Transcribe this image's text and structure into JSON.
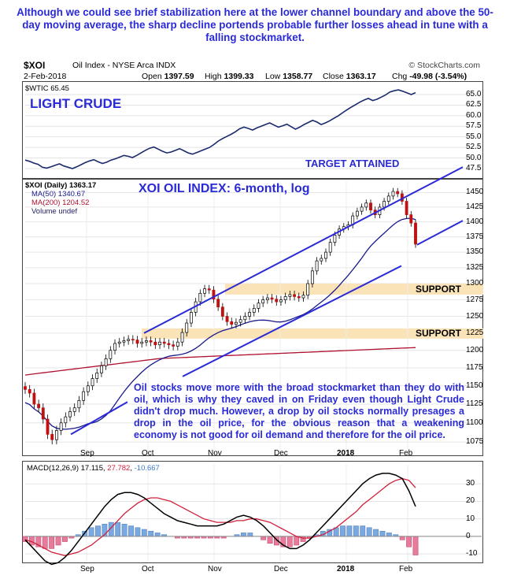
{
  "top_note": "Although we could see brief stabilization here at the lower channel boundary and above the 50-day moving average, the sharp decline portends probable further losses ahead in tune with a falling stockmarket.",
  "header": {
    "symbol": "$XOI",
    "name": "Oil Index - NYSE Arca INDX",
    "source": "© StockCharts.com",
    "date": "2-Feb-2018",
    "open_label": "Open",
    "open": "1397.59",
    "high_label": "High",
    "high": "1399.33",
    "low_label": "Low",
    "low": "1358.77",
    "close_label": "Close",
    "close": "1363.17",
    "chg_label": "Chg",
    "chg": "-49.98 (-3.54%)"
  },
  "colors": {
    "blue_text": "#2a2ad6",
    "price": "#000000",
    "ma50": "#1a1a8c",
    "ma200": "#b01030",
    "macd": "#000000",
    "signal": "#d0203a",
    "hist_pos": "#7aa8e0",
    "hist_neg": "#e87a9a",
    "support": "#fbe3b8",
    "channel": "#2a2ad6"
  },
  "crude_panel": {
    "legend": "$WTIC 65.45",
    "annotation": "LIGHT CRUDE",
    "target_label": "TARGET ATTAINED",
    "yticks": [
      "65.0",
      "62.5",
      "60.0",
      "57.5",
      "55.0",
      "52.5",
      "50.0",
      "47.5"
    ]
  },
  "price_panel": {
    "legend_main": "$XOI (Daily) 1363.17",
    "legend_ma50": "MA(50) 1340.67",
    "legend_ma200": "MA(200) 1204.52",
    "legend_vol": "Volume undef",
    "title": "XOI OIL INDEX: 6-month, log",
    "support1": "SUPPORT",
    "support2": "SUPPORT",
    "yticks": [
      "1450",
      "1425",
      "1400",
      "1375",
      "1350",
      "1325",
      "1300",
      "1275",
      "1250",
      "1225",
      "1200",
      "1175",
      "1150",
      "1125",
      "1100",
      "1075"
    ]
  },
  "body_note": "Oil stocks move more with the broad stockmarket than they do with oil, which is why they caved in on Friday even though Light Crude didn't drop much. However, a drop by oil stocks normally presages a drop in the oil price, for the obvious reason that a weakening economy is not good for oil demand and therefore for the oil price.",
  "macd_panel": {
    "legend_name": "MACD(12,26,9)",
    "legend_macd": "17.115",
    "legend_signal": "27.782",
    "legend_hist": "-10.667",
    "yticks": [
      "30",
      "20",
      "10",
      "0",
      "-10"
    ]
  },
  "x_axis": [
    "Sep",
    "Oct",
    "Nov",
    "Dec",
    "2018",
    "Feb"
  ],
  "chart_data": {
    "type": "line",
    "crude_close": [
      49.5,
      49.2,
      48.8,
      48.5,
      47.8,
      47.6,
      47.9,
      48.3,
      48.6,
      48.1,
      47.8,
      47.5,
      47.9,
      48.4,
      48.9,
      49.3,
      49.6,
      49.1,
      48.7,
      49.0,
      49.5,
      49.8,
      50.2,
      50.6,
      50.4,
      50.1,
      50.6,
      51.2,
      51.8,
      52.3,
      52.6,
      52.1,
      51.6,
      51.2,
      51.4,
      51.8,
      52.2,
      51.7,
      51.2,
      50.9,
      51.3,
      51.7,
      52.1,
      52.5,
      53.2,
      54.0,
      54.6,
      55.1,
      55.6,
      56.2,
      56.9,
      57.3,
      57.0,
      56.6,
      57.1,
      57.5,
      57.9,
      58.3,
      57.8,
      57.3,
      57.6,
      58.0,
      57.4,
      56.8,
      57.3,
      57.9,
      58.4,
      58.9,
      58.5,
      57.9,
      58.3,
      58.8,
      59.4,
      60.0,
      60.7,
      61.4,
      62.0,
      62.6,
      63.2,
      63.7,
      64.1,
      63.6,
      63.9,
      64.4,
      64.9,
      65.6,
      65.9,
      66.1,
      65.8,
      65.4,
      65.0,
      65.45
    ],
    "xoi_close": [
      1145,
      1140,
      1125,
      1120,
      1105,
      1085,
      1078,
      1090,
      1100,
      1108,
      1115,
      1120,
      1130,
      1142,
      1150,
      1160,
      1168,
      1178,
      1188,
      1200,
      1210,
      1212,
      1214,
      1216,
      1215,
      1210,
      1212,
      1214,
      1212,
      1208,
      1212,
      1210,
      1208,
      1206,
      1212,
      1226,
      1240,
      1256,
      1272,
      1285,
      1292,
      1290,
      1276,
      1264,
      1250,
      1242,
      1238,
      1241,
      1245,
      1250,
      1256,
      1262,
      1270,
      1275,
      1278,
      1276,
      1272,
      1275,
      1280,
      1283,
      1280,
      1278,
      1282,
      1300,
      1320,
      1336,
      1340,
      1350,
      1366,
      1378,
      1388,
      1392,
      1395,
      1410,
      1418,
      1425,
      1432,
      1420,
      1412,
      1425,
      1435,
      1444,
      1452,
      1448,
      1435,
      1412,
      1398,
      1363
    ],
    "macd": [
      -2,
      -6,
      -10,
      -14,
      -16,
      -15,
      -12,
      -8,
      -3,
      2,
      7,
      12,
      17,
      21,
      24,
      25,
      25,
      24,
      22,
      19,
      16,
      13,
      11,
      9,
      8,
      7,
      6,
      6,
      6,
      6,
      7,
      9,
      11,
      12,
      11,
      9,
      6,
      2,
      -2,
      -5,
      -7,
      -7,
      -5,
      -2,
      2,
      6,
      10,
      14,
      18,
      22,
      26,
      30,
      33,
      35,
      36,
      36,
      35,
      33,
      26,
      17.115
    ],
    "signal": [
      -2,
      -3,
      -5,
      -7,
      -9,
      -10,
      -11,
      -10,
      -9,
      -7,
      -5,
      -2,
      1,
      5,
      9,
      13,
      16,
      19,
      21,
      22,
      22,
      21,
      20,
      18,
      16,
      14,
      12,
      10,
      9,
      8,
      8,
      8,
      9,
      9,
      10,
      10,
      9,
      8,
      6,
      4,
      2,
      0,
      -1,
      -1,
      0,
      1,
      3,
      5,
      8,
      11,
      14,
      18,
      21,
      24,
      27,
      30,
      32,
      33,
      32,
      27.782
    ],
    "hist": [
      -3,
      -5,
      -6,
      -7,
      -7,
      -5,
      -3,
      -1,
      1,
      3,
      5,
      6,
      7,
      8,
      8,
      7,
      6,
      5,
      4,
      3,
      2,
      1,
      0,
      -1,
      -1,
      -1,
      -1,
      -1,
      -1,
      -1,
      -1,
      0,
      1,
      2,
      2,
      0,
      -2,
      -4,
      -5,
      -6,
      -6,
      -5,
      -3,
      -1,
      1,
      3,
      4,
      5,
      6,
      6,
      6,
      6,
      5,
      4,
      3,
      2,
      1,
      -2,
      -6,
      -10.667
    ],
    "ylim_crude": [
      46,
      66.5
    ],
    "ylim_xoi": [
      1060,
      1470
    ],
    "ylim_macd": [
      -14,
      40
    ]
  }
}
